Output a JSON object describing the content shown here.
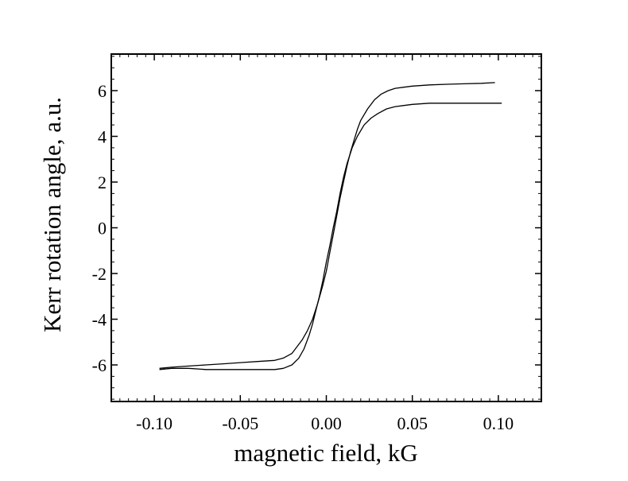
{
  "chart_data": {
    "type": "line",
    "title": "",
    "xlabel": "magnetic field, kG",
    "ylabel": "Kerr rotation angle, a.u.",
    "xlim": [
      -0.125,
      0.125
    ],
    "ylim": [
      -7.6,
      7.6
    ],
    "x_ticks": [
      -0.1,
      -0.05,
      0.0,
      0.05,
      0.1
    ],
    "x_tick_labels": [
      "-0.10",
      "-0.05",
      "0.00",
      "0.05",
      "0.10"
    ],
    "y_ticks": [
      -6,
      -4,
      -2,
      0,
      2,
      4,
      6
    ],
    "y_tick_labels": [
      "-6",
      "-4",
      "-2",
      "0",
      "2",
      "4",
      "6"
    ],
    "grid": false,
    "line_color": "#000000",
    "series": [
      {
        "x": [
          -0.097,
          -0.09,
          -0.08,
          -0.07,
          -0.06,
          -0.05,
          -0.04,
          -0.03,
          -0.025,
          -0.02,
          -0.017,
          -0.014,
          -0.011,
          -0.008,
          -0.005,
          -0.002,
          0.0,
          0.002,
          0.004,
          0.006,
          0.008,
          0.01,
          0.012,
          0.014,
          0.016,
          0.018,
          0.02,
          0.024,
          0.028,
          0.032,
          0.036,
          0.04,
          0.045,
          0.05,
          0.06,
          0.07,
          0.08,
          0.09,
          0.098
        ],
        "y": [
          -6.15,
          -6.1,
          -6.05,
          -6.0,
          -5.95,
          -5.9,
          -5.85,
          -5.8,
          -5.7,
          -5.5,
          -5.2,
          -4.9,
          -4.5,
          -4.0,
          -3.3,
          -2.5,
          -1.9,
          -1.1,
          -0.3,
          0.5,
          1.3,
          2.0,
          2.7,
          3.3,
          3.8,
          4.3,
          4.7,
          5.2,
          5.6,
          5.85,
          6.0,
          6.1,
          6.15,
          6.2,
          6.25,
          6.28,
          6.3,
          6.32,
          6.35
        ]
      },
      {
        "x": [
          0.102,
          0.095,
          0.09,
          0.08,
          0.07,
          0.06,
          0.05,
          0.045,
          0.04,
          0.035,
          0.03,
          0.026,
          0.022,
          0.018,
          0.015,
          0.012,
          0.01,
          0.008,
          0.006,
          0.004,
          0.002,
          0.0,
          -0.002,
          -0.004,
          -0.006,
          -0.008,
          -0.01,
          -0.013,
          -0.016,
          -0.02,
          -0.025,
          -0.03,
          -0.04,
          -0.05,
          -0.06,
          -0.07,
          -0.08,
          -0.09,
          -0.097
        ],
        "y": [
          5.45,
          5.45,
          5.45,
          5.45,
          5.45,
          5.45,
          5.4,
          5.35,
          5.3,
          5.2,
          5.0,
          4.8,
          4.5,
          4.0,
          3.5,
          2.8,
          2.2,
          1.5,
          0.7,
          0.0,
          -0.8,
          -1.5,
          -2.3,
          -3.0,
          -3.6,
          -4.2,
          -4.7,
          -5.3,
          -5.7,
          -6.0,
          -6.15,
          -6.2,
          -6.2,
          -6.2,
          -6.2,
          -6.2,
          -6.15,
          -6.15,
          -6.2
        ]
      }
    ]
  }
}
